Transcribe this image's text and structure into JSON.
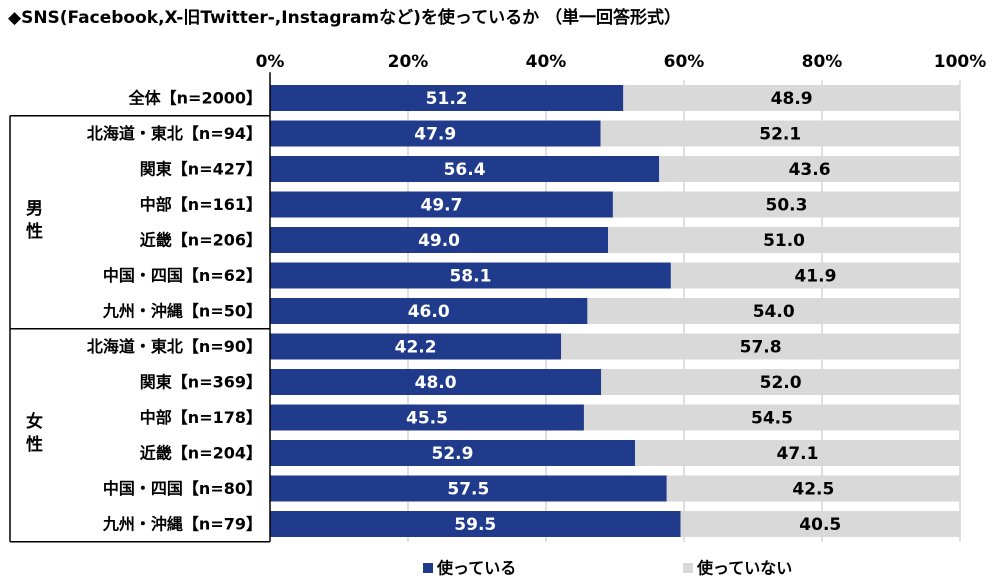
{
  "chart_data": {
    "type": "stacked-bar-horizontal",
    "title": "◆SNS(Facebook,X-旧Twitter-,Instagramなど)を使っているか （単一回答形式）",
    "categories": [
      "全体【n=2000】",
      "北海道・東北【n=94】",
      "関東【n=427】",
      "中部【n=161】",
      "近畿【n=206】",
      "中国・四国【n=62】",
      "九州・沖縄【n=50】",
      "北海道・東北【n=90】",
      "関東【n=369】",
      "中部【n=178】",
      "近畿【n=204】",
      "中国・四国【n=80】",
      "九州・沖縄【n=79】"
    ],
    "category_groups": [
      null,
      "男性",
      "男性",
      "男性",
      "男性",
      "男性",
      "男性",
      "女性",
      "女性",
      "女性",
      "女性",
      "女性",
      "女性"
    ],
    "series": [
      {
        "name": "使っている",
        "color": "#203b8c",
        "values": [
          51.2,
          47.9,
          56.4,
          49.7,
          49.0,
          58.1,
          46.0,
          42.2,
          48.0,
          45.5,
          52.9,
          57.5,
          59.5
        ],
        "value_labels": [
          "51.2",
          "47.9",
          "56.4",
          "49.7",
          "49.0",
          "58.1",
          "46.0",
          "42.2",
          "48.0",
          "45.5",
          "52.9",
          "57.5",
          "59.5"
        ]
      },
      {
        "name": "使っていない",
        "color": "#d9d9d9",
        "values": [
          48.9,
          52.1,
          43.6,
          50.3,
          51.0,
          41.9,
          54.0,
          57.8,
          52.0,
          54.5,
          47.1,
          42.5,
          40.5
        ],
        "value_labels": [
          "48.9",
          "52.1",
          "43.6",
          "50.3",
          "51.0",
          "41.9",
          "54.0",
          "57.8",
          "52.0",
          "54.5",
          "47.1",
          "42.5",
          "40.5"
        ]
      }
    ],
    "xlim": [
      0,
      100
    ],
    "xticks": [
      {
        "value": 0,
        "label": "0%"
      },
      {
        "value": 20,
        "label": "20%"
      },
      {
        "value": 40,
        "label": "40%"
      },
      {
        "value": 60,
        "label": "60%"
      },
      {
        "value": 80,
        "label": "80%"
      },
      {
        "value": 100,
        "label": "100%"
      }
    ],
    "grid": true,
    "legend": "bottom"
  }
}
